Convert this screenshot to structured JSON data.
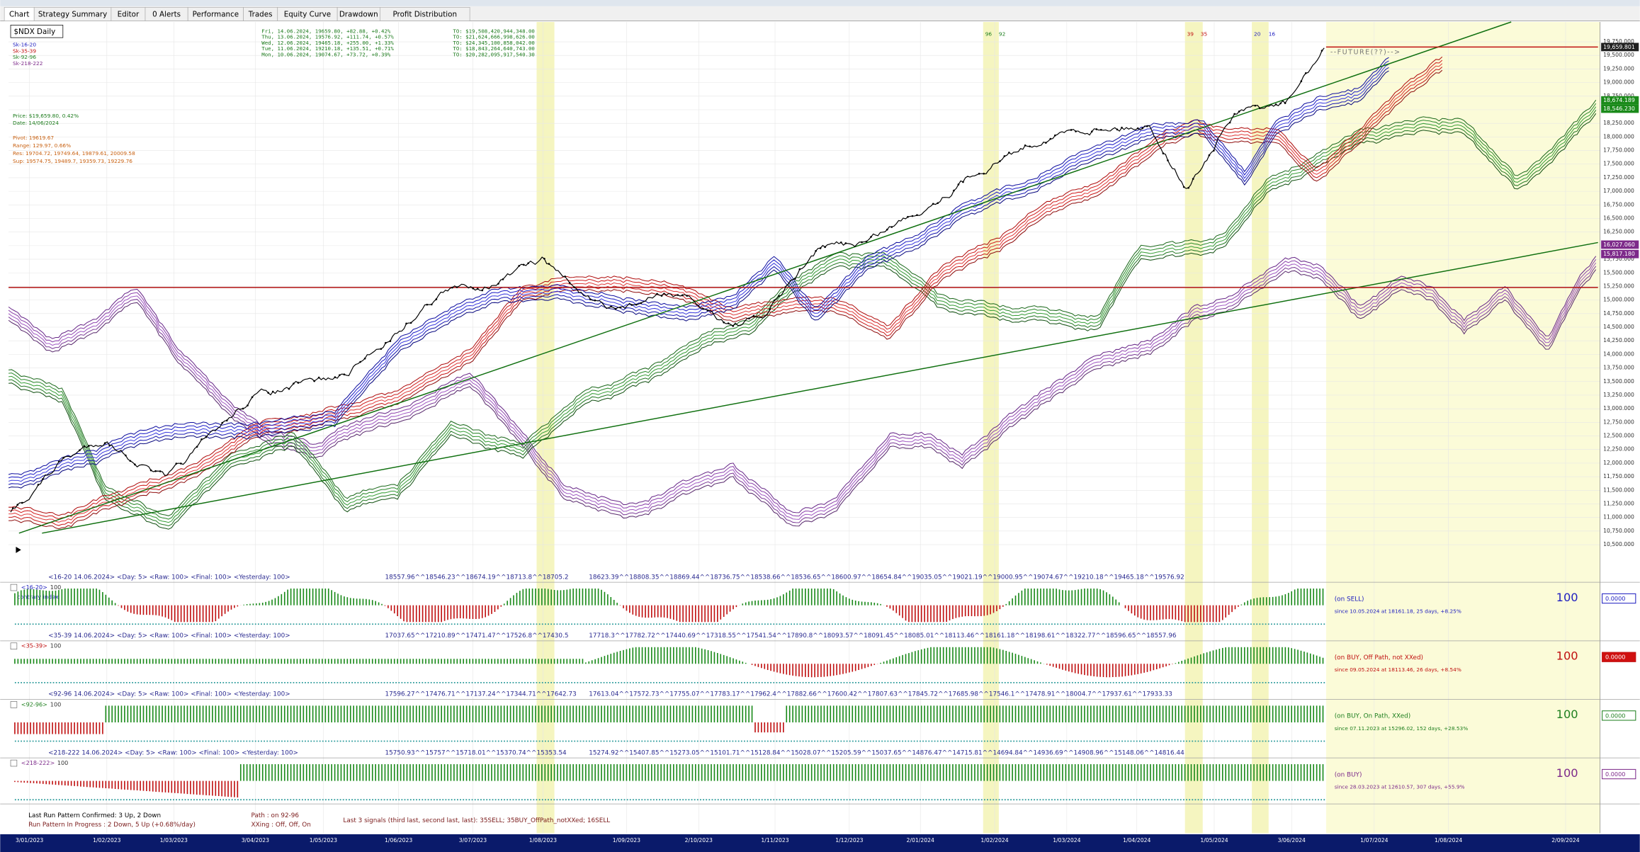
{
  "tabs": [
    "Chart",
    "Strategy Summary",
    "Editor",
    "0 Alerts",
    "Performance",
    "Trades",
    "Equity Curve",
    "Drawdown",
    "Profit Distribution"
  ],
  "symbol": "$NDX Daily",
  "legend": [
    "Sk-16-20",
    "Sk-35-39",
    "Sk-92-96",
    "Sk-218-222"
  ],
  "quotes": [
    {
      "day": "Fri, 14.06.2024, 19659.80, +82.88, +0.42%",
      "to": "TO: $19,508,420,944,348.00"
    },
    {
      "day": "Thu, 13.06.2024, 19576.92, +111.74, +0.57%",
      "to": "TO: $21,624,666,998,626.00"
    },
    {
      "day": "Wed, 12.06.2024, 19465.18, +255.00, +1.33%",
      "to": "TO: $24,345,100,858,042.00"
    },
    {
      "day": "Tue, 11.06.2024, 19210.18, +135.51, +0.71%",
      "to": "TO: $18,843,264,640,743.00"
    },
    {
      "day": "Mon, 10.06.2024, 19074.67, +73.72, +0.39%",
      "to": "TO: $20,282,095,917,540.30"
    }
  ],
  "price_info": [
    "Price: $19,659.80, 0.42%",
    "Date: 14/06/2024"
  ],
  "pivot_info": [
    "Pivot: 19619.67",
    "Range: 129.97, 0.66%",
    "Res: 19704.72, 19749.64, 19879.61, 20009.58",
    "Sup: 19574.75, 19489.7, 19359.73, 19229.76"
  ],
  "markers": [
    "96",
    "92",
    "39",
    "35",
    "20",
    "16"
  ],
  "future_label": "--FUTURE(??)-->",
  "y_axis_labels": [
    "19,750.000",
    "19,500.000",
    "19,250.000",
    "19,000.000",
    "18,750.000",
    "18,500.000",
    "18,250.000",
    "18,000.000",
    "17,750.000",
    "17,500.000",
    "17,250.000",
    "17,000.000",
    "16,750.000",
    "16,500.000",
    "16,250.000",
    "16,000.000",
    "15,750.000",
    "15,500.000",
    "15,250.000",
    "15,000.000",
    "14,750.000",
    "14,500.000",
    "14,250.000",
    "14,000.000",
    "13,750.000",
    "13,500.000",
    "13,250.000",
    "13,000.000",
    "12,750.000",
    "12,500.000",
    "12,250.000",
    "12,000.000",
    "11,750.000",
    "11,500.000",
    "11,250.000",
    "11,000.000",
    "10,750.000",
    "10,500.000"
  ],
  "price_tags": [
    "19,659.801",
    "18,674.189",
    "18,546.230",
    "16,027.060",
    "15,817.180"
  ],
  "panels": [
    {
      "header": "<16-20  14.06.2024>  <Day: 5>  <Raw: 100>  <Final: 100>  <Yesterday: 100>",
      "values_a": "18557.96^^18546.23^^18674.19^^18713.8^^18705.2",
      "values_b": "18623.39^^18808.35^^18869.44^^18736.75^^18538.66^^18536.65^^18600.97^^18654.84^^19035.05^^19021.19^^19000.95^^19074.67^^19210.18^^19465.18^^19576.92",
      "label": "<16-20>",
      "label_value": "100",
      "note": "contrary index",
      "status": "(on SELL)",
      "since": "since 10.05.2024 at 18161.18, 25 days, +8.25%",
      "score": "100",
      "box": "0.0000"
    },
    {
      "header": "<35-39  14.06.2024>  <Day: 5>  <Raw: 100>  <Final: 100>  <Yesterday: 100>",
      "values_a": "17037.65^^17210.89^^17471.47^^17526.8^^17430.5",
      "values_b": "17718.3^^17782.72^^17440.69^^17318.55^^17541.54^^17890.8^^18093.57^^18091.45^^18085.01^^18113.46^^18161.18^^18198.61^^18322.77^^18596.65^^18557.96",
      "label": "<35-39>",
      "label_value": "100",
      "status": "(on BUY, Off Path, not XXed)",
      "since": "since 09.05.2024 at 18113.46, 26 days, +8.54%",
      "score": "100",
      "box": "0.0000"
    },
    {
      "header": "<92-96  14.06.2024>  <Day: 5>  <Raw: 100>  <Final: 100>  <Yesterday: 100>",
      "values_a": "17596.27^^17476.71^^17137.24^^17344.71^^17642.73",
      "values_b": "17613.04^^17572.73^^17755.07^^17783.17^^17962.4^^17882.66^^17600.42^^17807.63^^17845.72^^17685.98^^17546.1^^17478.91^^18004.7^^17937.61^^17933.33",
      "label": "<92-96>",
      "label_value": "100",
      "status": "(on BUY, On Path, XXed)",
      "since": "since 07.11.2023 at 15296.02, 152 days, +28.53%",
      "score": "100",
      "box": "0.0000"
    },
    {
      "header": "<218-222  14.06.2024>  <Day: 5>  <Raw: 100>  <Final: 100>  <Yesterday: 100>",
      "values_a": "15750.93^^15757^^15718.01^^15370.74^^15353.54",
      "values_b": "15274.92^^15407.85^^15273.05^^15101.71^^15128.84^^15028.07^^15205.59^^15037.65^^14876.47^^14715.81^^14694.84^^14936.69^^14908.96^^15148.06^^14816.44",
      "label": "<218-222>",
      "label_value": "100",
      "status": "(on BUY)",
      "since": "since 28.03.2023 at 12610.57, 307 days, +55.9%",
      "score": "100",
      "box": "0.0000"
    }
  ],
  "footer": {
    "confirmed": "Last Run Pattern Confirmed: 3 Up, 2 Down",
    "in_progress": "Run Pattern In Progress : 2 Down, 5 Up (+0.68%/day)",
    "path": "Path   : on 92-96",
    "xxing": "XXing : Off, Off, On",
    "signals": "Last 3 signals (third last, second last, last): 35SELL;  35BUY_OffPath_notXXed;  16SELL"
  },
  "dates": [
    "3/01/2023",
    "1/02/2023",
    "1/03/2023",
    "3/04/2023",
    "1/05/2023",
    "1/06/2023",
    "3/07/2023",
    "1/08/2023",
    "1/09/2023",
    "2/10/2023",
    "1/11/2023",
    "1/12/2023",
    "2/01/2024",
    "1/02/2024",
    "1/03/2024",
    "1/04/2024",
    "1/05/2024",
    "3/06/2024",
    "1/07/2024",
    "1/08/2024",
    "2/09/2024"
  ]
}
